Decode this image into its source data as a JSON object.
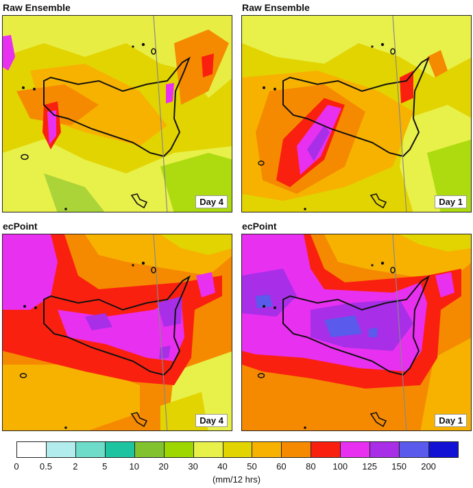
{
  "panels": [
    {
      "title": "Raw Ensemble",
      "day": "Day 4",
      "kind": "raw4"
    },
    {
      "title": "Raw Ensemble",
      "day": "Day 1",
      "kind": "raw1"
    },
    {
      "title": "ecPoint",
      "day": "Day 4",
      "kind": "ec4"
    },
    {
      "title": "ecPoint",
      "day": "Day 1",
      "kind": "ec1"
    }
  ],
  "legend": {
    "units": "(mm/12 hrs)",
    "ticks": [
      "0",
      "0.5",
      "2",
      "5",
      "10",
      "20",
      "30",
      "40",
      "50",
      "60",
      "80",
      "100",
      "125",
      "150",
      "200"
    ],
    "colors": [
      "#ffffff",
      "#b3ecec",
      "#6edcc8",
      "#1ec4a0",
      "#82c22e",
      "#9ed600",
      "#e8f04a",
      "#e2d400",
      "#f7b200",
      "#f58a00",
      "#fa2010",
      "#e830f0",
      "#a82ee8",
      "#5a5aec",
      "#1212d4"
    ]
  }
}
